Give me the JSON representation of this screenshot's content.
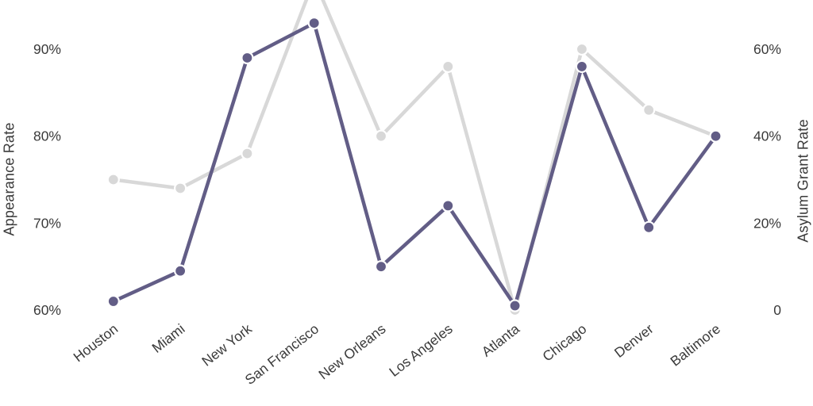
{
  "chart_data": {
    "type": "line",
    "title": "",
    "categories": [
      "Houston",
      "Miami",
      "New York",
      "San Francisco",
      "New Orleans",
      "Los Angeles",
      "Atlanta",
      "Chicago",
      "Denver",
      "Baltimore"
    ],
    "series": [
      {
        "name": "Appearance Rate",
        "axis": "left",
        "color": "#d8d8d8",
        "values": [
          75,
          74,
          78,
          98,
          80,
          88,
          60,
          90,
          83,
          80
        ]
      },
      {
        "name": "Asylum Grant Rate",
        "axis": "right",
        "color": "#625d86",
        "values": [
          2,
          9,
          58,
          66,
          10,
          24,
          1,
          56,
          19,
          40
        ]
      }
    ],
    "left_axis": {
      "label": "Appearance Rate",
      "tick_values": [
        60,
        70,
        80,
        90
      ],
      "tick_labels": [
        "60%",
        "70%",
        "80%",
        "90%"
      ],
      "ylim": [
        60,
        96
      ]
    },
    "right_axis": {
      "label": "Asylum Grant Rate",
      "tick_values": [
        0,
        20,
        40,
        60
      ],
      "tick_labels": [
        "0",
        "20%",
        "40%",
        "60%"
      ],
      "ylim": [
        0,
        72
      ]
    },
    "grid": false,
    "legend": false,
    "background": "#ffffff",
    "text_color": "#3a3a3a",
    "clipped_points": [
      "San Francisco Appearance Rate point extends above top edge"
    ]
  }
}
